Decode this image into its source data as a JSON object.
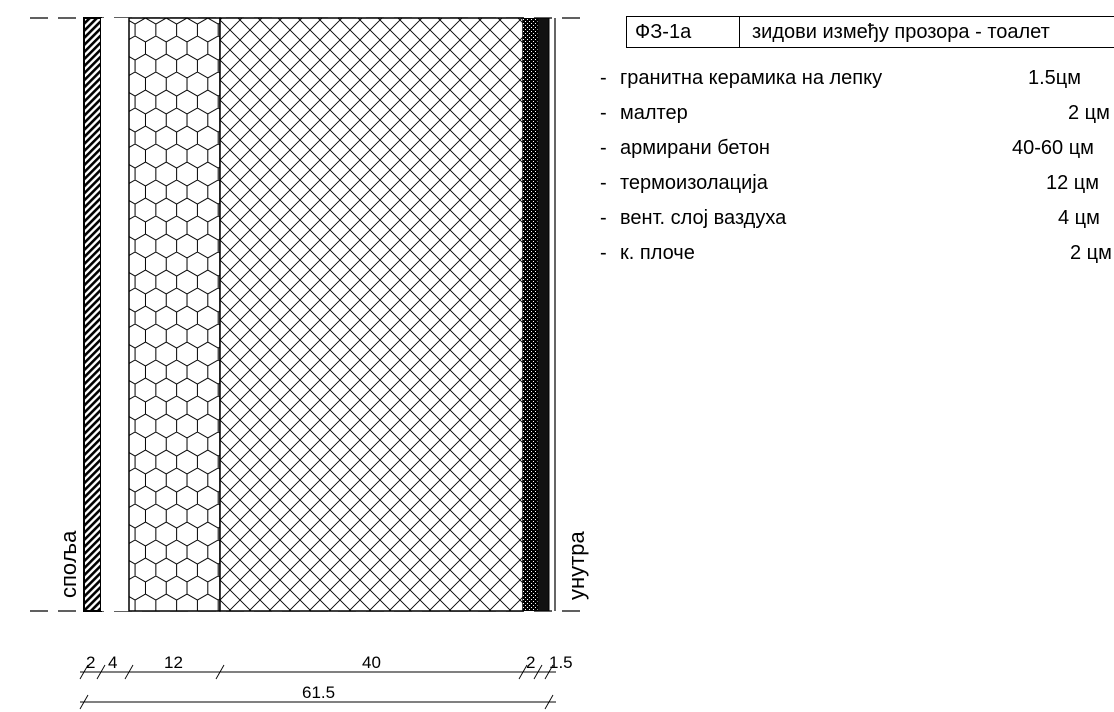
{
  "labels": {
    "outside": "споља",
    "inside": "унутра"
  },
  "dimensions": {
    "segments": [
      "2",
      "4",
      "12",
      "40",
      "2",
      "1.5"
    ],
    "total": "61.5"
  },
  "spec": {
    "code": "ФЗ-1а",
    "title": "зидови између прозора - тоалет",
    "layers": [
      {
        "name": "гранитна керамика  на лепку",
        "thickness": "1.5цм"
      },
      {
        "name": "малтер",
        "thickness": "2 цм"
      },
      {
        "name": "армирани бетон",
        "thickness": "40-60  цм"
      },
      {
        "name": "термоизолација",
        "thickness": "12 цм"
      },
      {
        "name": "вент. слој ваздуха",
        "thickness": "4 цм"
      },
      {
        "name": "к. плоче",
        "thickness": "2 цм"
      }
    ]
  },
  "colors": {
    "line": "#000000",
    "background": "#ffffff"
  }
}
